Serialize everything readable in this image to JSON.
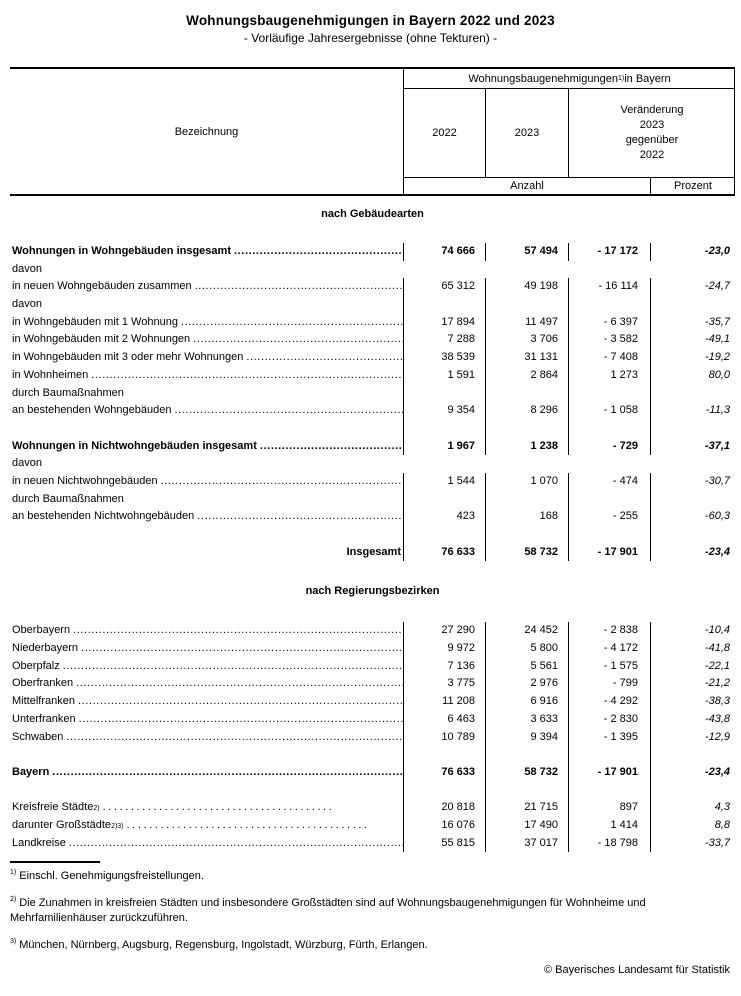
{
  "page": {
    "title": "Wohnungsbaugenehmigungen in Bayern 2022 und 2023",
    "subtitle": "- Vorläufige Jahresergebnisse (ohne Tekturen) -",
    "copyright": "© Bayerisches Landesamt für Statistik"
  },
  "table": {
    "header": {
      "col1": "Bezeichnung",
      "group_pre": "Wohnungsbaugenehmigungen",
      "group_sup": "1)",
      "group_post": " in Bayern",
      "col_2022": "2022",
      "col_2023": "2023",
      "col_change": "Veränderung\n2023\ngegenüber\n2022",
      "unit_count": "Anzahl",
      "unit_percent": "Prozent"
    },
    "sections": [
      {
        "title": "nach Gebäudearten",
        "rows": [
          {
            "label": "Wohnungen in Wohngebäuden insgesamt",
            "bold": true,
            "leader": "dense",
            "sep": true,
            "values": [
              "74 666",
              "57 494",
              "- 17 172",
              "-23,0"
            ]
          },
          {
            "label": "davon",
            "leader": "none",
            "sep": false,
            "values": null
          },
          {
            "label": "in neuen Wohngebäuden zusammen",
            "leader": "dense",
            "sep": true,
            "values": [
              "65 312",
              "49 198",
              "- 16 114",
              "-24,7"
            ]
          },
          {
            "label": "davon",
            "leader": "none",
            "sep": true,
            "values": null
          },
          {
            "label": "in Wohngebäuden mit 1 Wohnung",
            "leader": "dense",
            "sep": true,
            "values": [
              "17 894",
              "11 497",
              "- 6 397",
              "-35,7"
            ]
          },
          {
            "label": "in Wohngebäuden mit 2 Wohnungen",
            "leader": "dense",
            "sep": true,
            "values": [
              "7 288",
              "3 706",
              "- 3 582",
              "-49,1"
            ]
          },
          {
            "label": "in Wohngebäuden mit 3 oder mehr Wohnungen",
            "leader": "dense",
            "sep": true,
            "values": [
              "38 539",
              "31 131",
              "- 7 408",
              "-19,2"
            ]
          },
          {
            "label": "in Wohnheimen",
            "leader": "dense",
            "sep": true,
            "values": [
              "1 591",
              "2 864",
              "1 273",
              "80,0"
            ]
          },
          {
            "label": "durch Baumaßnahmen",
            "leader": "none",
            "sep": true,
            "values": null
          },
          {
            "label": "an bestehenden Wohngebäuden",
            "leader": "dense",
            "sep": true,
            "values": [
              "9 354",
              "8 296",
              "- 1 058",
              "-11,3"
            ]
          },
          {
            "spacer": true,
            "sep": true
          },
          {
            "label": "Wohnungen in Nichtwohngebäuden insgesamt",
            "bold": true,
            "leader": "dense",
            "sep": true,
            "values": [
              "1 967",
              "1 238",
              "- 729",
              "-37,1"
            ]
          },
          {
            "label": "davon",
            "leader": "none",
            "sep": false,
            "values": null
          },
          {
            "label": "in neuen Nichtwohngebäuden",
            "leader": "dense",
            "sep": true,
            "values": [
              "1 544",
              "1 070",
              "- 474",
              "-30,7"
            ]
          },
          {
            "label": "durch Baumaßnahmen",
            "leader": "none",
            "sep": true,
            "values": null
          },
          {
            "label": "an bestehenden Nichtwohngebäuden",
            "leader": "dense",
            "sep": true,
            "values": [
              "423",
              "168",
              "- 255",
              "-60,3"
            ]
          },
          {
            "spacer": true,
            "sep": true
          },
          {
            "label": "Insgesamt",
            "bold": true,
            "align": "right",
            "leader": "none",
            "sep": true,
            "values": [
              "76 633",
              "58 732",
              "- 17 901",
              "-23,4"
            ]
          }
        ]
      },
      {
        "title": "nach Regierungsbezirken",
        "rows": [
          {
            "label": "Oberbayern",
            "leader": "dense",
            "sep": true,
            "values": [
              "27 290",
              "24 452",
              "- 2 838",
              "-10,4"
            ]
          },
          {
            "label": "Niederbayern",
            "leader": "dense",
            "sep": true,
            "values": [
              "9 972",
              "5 800",
              "- 4 172",
              "-41,8"
            ]
          },
          {
            "label": "Oberpfalz",
            "leader": "dense",
            "sep": true,
            "values": [
              "7 136",
              "5 561",
              "- 1 575",
              "-22,1"
            ]
          },
          {
            "label": "Oberfranken",
            "leader": "dense",
            "sep": true,
            "values": [
              "3 775",
              "2 976",
              "- 799",
              "-21,2"
            ]
          },
          {
            "label": "Mittelfranken",
            "leader": "dense",
            "sep": true,
            "values": [
              "11 208",
              "6 916",
              "- 4 292",
              "-38,3"
            ]
          },
          {
            "label": "Unterfranken",
            "leader": "dense",
            "sep": true,
            "values": [
              "6 463",
              "3 633",
              "- 2 830",
              "-43,8"
            ]
          },
          {
            "label": "Schwaben",
            "leader": "dense",
            "sep": true,
            "values": [
              "10 789",
              "9 394",
              "- 1 395",
              "-12,9"
            ]
          },
          {
            "spacer": true,
            "sep": true
          },
          {
            "label": "Bayern",
            "bold": true,
            "leader": "dense",
            "sep": true,
            "values": [
              "76 633",
              "58 732",
              "- 17 901",
              "-23,4"
            ]
          },
          {
            "spacer": true,
            "sep": true
          },
          {
            "label": "Kreisfreie Städte",
            "sup": "2)",
            "leader": "sparse",
            "leadPad": 70,
            "sep": true,
            "values": [
              "20 818",
              "21 715",
              "897",
              "4,3"
            ]
          },
          {
            "label": "darunter Großstädte",
            "sup": "2)3)",
            "leader": "sparse",
            "leadPad": 35,
            "sep": true,
            "values": [
              "16 076",
              "17 490",
              "1 414",
              "8,8"
            ]
          },
          {
            "label": "Landkreise",
            "leader": "dense",
            "sep": true,
            "values": [
              "55 815",
              "37 017",
              "- 18 798",
              "-33,7"
            ]
          }
        ]
      }
    ]
  },
  "footnotes": [
    {
      "marker": "1)",
      "text": "Einschl. Genehmigungsfreistellungen."
    },
    {
      "marker": "2)",
      "text": "Die Zunahmen in kreisfreien Städten und insbesondere Großstädten sind auf Wohnungsbaugenehmigungen für Wohnheime und Mehrfamilienhäuser zurückzuführen."
    },
    {
      "marker": "3)",
      "text": "München, Nürnberg, Augsburg, Regensburg, Ingolstadt, Würzburg, Fürth, Erlangen."
    }
  ]
}
